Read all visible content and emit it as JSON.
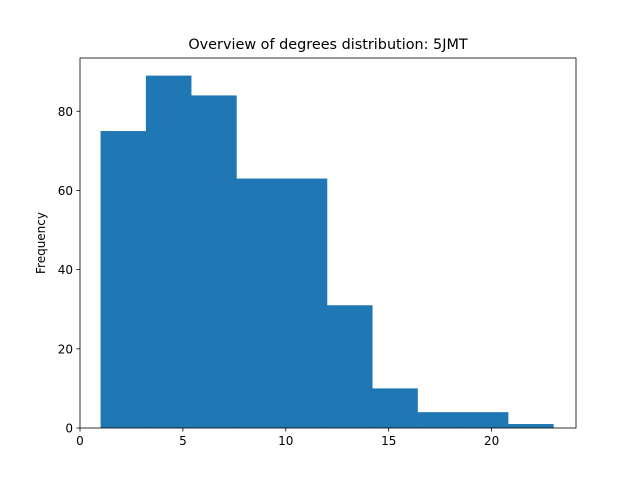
{
  "chart_data": {
    "type": "bar",
    "title": "Overview of degrees distribution: 5JMT",
    "xlabel": "",
    "ylabel": "Frequency",
    "xlim": [
      0,
      24.1
    ],
    "ylim": [
      0,
      93.45
    ],
    "xticks": [
      0,
      5,
      10,
      15,
      20
    ],
    "yticks": [
      0,
      20,
      40,
      60,
      80
    ],
    "bin_edges": [
      1.0,
      3.2,
      5.4,
      7.6,
      9.8,
      12.0,
      14.2,
      16.4,
      18.6,
      20.8,
      23.0
    ],
    "values": [
      75,
      89,
      84,
      63,
      63,
      31,
      10,
      4,
      4,
      1
    ],
    "bar_color": "#1f77b4",
    "grid": false,
    "legend": "none"
  }
}
